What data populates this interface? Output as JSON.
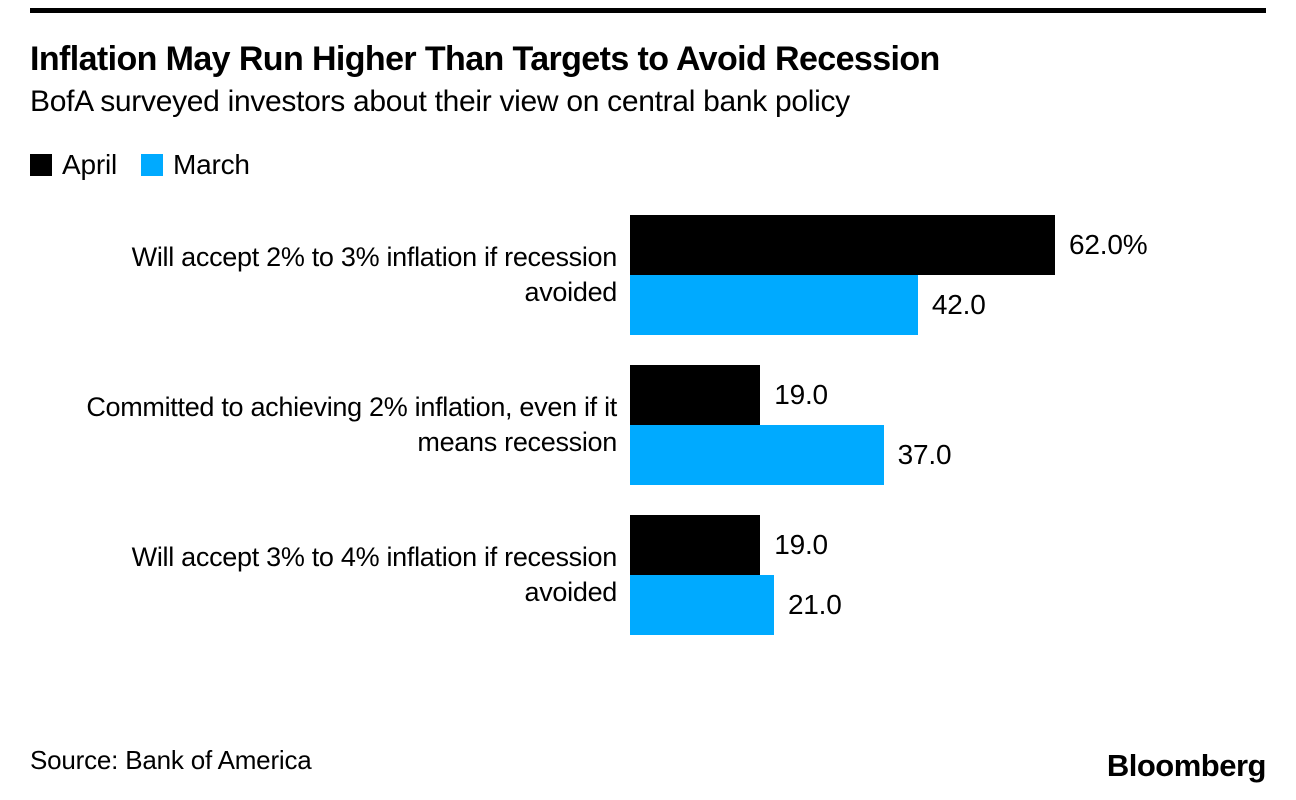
{
  "header": {
    "title": "Inflation May Run Higher Than Targets to Avoid Recession",
    "subtitle": "BofA surveyed investors about their view on central bank policy"
  },
  "legend": [
    {
      "label": "April",
      "color": "#000000"
    },
    {
      "label": "March",
      "color": "#00AAFF"
    }
  ],
  "chart_data": {
    "type": "bar",
    "orientation": "horizontal",
    "title": "Inflation May Run Higher Than Targets to Avoid Recession",
    "subtitle": "BofA surveyed investors about their view on central bank policy",
    "categories": [
      "Will accept 2% to 3% inflation if recession avoided",
      "Committed to achieving 2% inflation, even if it means recession",
      "Will accept 3% to 4% inflation if recession avoided"
    ],
    "category_lines": [
      [
        "Will accept 2% to 3% inflation if recession",
        "avoided"
      ],
      [
        "Committed to achieving 2% inflation, even if it",
        "means recession"
      ],
      [
        "Will accept 3% to 4% inflation if recession",
        "avoided"
      ]
    ],
    "series": [
      {
        "name": "April",
        "color": "#000000",
        "values": [
          62.0,
          19.0,
          19.0
        ],
        "value_labels": [
          "62.0%",
          "19.0",
          "19.0"
        ]
      },
      {
        "name": "March",
        "color": "#00AAFF",
        "values": [
          42.0,
          37.0,
          21.0
        ],
        "value_labels": [
          "42.0",
          "37.0",
          "21.0"
        ]
      }
    ],
    "xlim": [
      0,
      62
    ],
    "unit": "percent",
    "grid": false,
    "legend_position": "top-left"
  },
  "footer": {
    "source": "Source: Bank of America",
    "logo": "Bloomberg"
  },
  "colors": {
    "april": "#000000",
    "march": "#00AAFF",
    "text": "#000000",
    "background": "#FFFFFF"
  }
}
